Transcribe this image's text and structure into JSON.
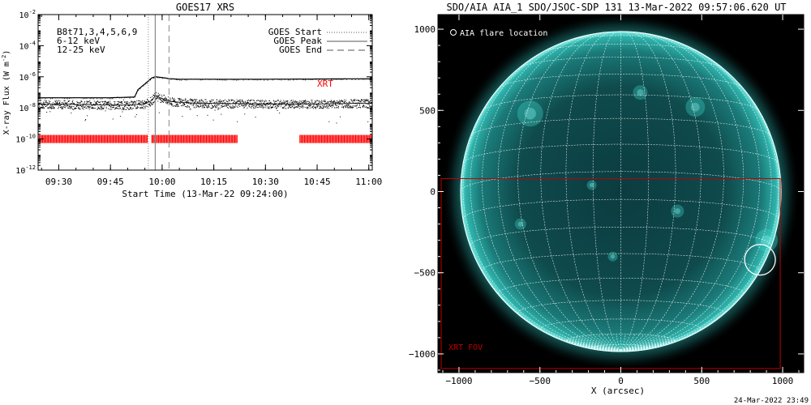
{
  "page": {
    "footer_timestamp": "24-Mar-2022 23:49"
  },
  "colors": {
    "magenta": "#e000e0",
    "green": "#00e000",
    "red": "#ff0000",
    "xrt_red": "#c00000",
    "aia_teal": "#20c8c0",
    "grid_white": "#ffffff"
  },
  "chart_data": [
    {
      "type": "line",
      "title": "GOES17 XRS",
      "xlabel": "Start Time (13-Mar-22 09:24:00)",
      "ylabel": "X-ray Flux (W m^-2)",
      "ylabel_parts": [
        "X-ray Flux (W m",
        "-2",
        ")"
      ],
      "yscale": "log",
      "xlim": [
        "09:24",
        "11:01"
      ],
      "ylim": [
        1e-12,
        0.01
      ],
      "x_ticks": [
        "09:30",
        "09:45",
        "10:00",
        "10:15",
        "10:30",
        "10:45",
        "11:00"
      ],
      "y_ticks": [
        {
          "base": "10",
          "exp": "-2"
        },
        {
          "base": "10",
          "exp": "-4"
        },
        {
          "base": "10",
          "exp": "-6"
        },
        {
          "base": "10",
          "exp": "-8"
        },
        {
          "base": "10",
          "exp": "-10"
        },
        {
          "base": "10",
          "exp": "-12"
        }
      ],
      "channel_labels": [
        {
          "text": "B8t71,3,4,5,6,9",
          "color": "#000000"
        },
        {
          "text": "6-12 keV",
          "color": "#e000e0"
        },
        {
          "text": "12-25 keV",
          "color": "#00e000"
        }
      ],
      "legend": {
        "placement": "top-right",
        "entries": [
          {
            "label": "GOES Start",
            "style": "dotted"
          },
          {
            "label": "GOES Peak",
            "style": "solid"
          },
          {
            "label": "GOES End",
            "style": "dashed"
          }
        ]
      },
      "event_lines": {
        "start": "09:56",
        "peak": "09:58",
        "end": "10:02"
      },
      "series": [
        {
          "name": "",
          "channel": "long",
          "x": [
            "09:24",
            "09:45",
            "09:52",
            "09:53",
            "09:55",
            "09:56",
            "09:57",
            "09:58",
            "10:00",
            "10:02",
            "10:05",
            "10:15",
            "10:30",
            "10:45",
            "11:00",
            "11:01"
          ],
          "y": [
            4.5e-08,
            4.5e-08,
            5e-08,
            1.5e-07,
            3.5e-07,
            5.5e-07,
            8.5e-07,
            1e-06,
            9e-07,
            7.5e-07,
            7e-07,
            7e-07,
            7e-07,
            7.2e-07,
            7.5e-07,
            7.5e-07
          ]
        },
        {
          "name": "",
          "channel": "short",
          "x": [
            "09:24",
            "09:40",
            "09:50",
            "09:55",
            "09:57",
            "09:58",
            "10:00",
            "10:03",
            "10:10",
            "10:30",
            "10:45",
            "11:00",
            "11:01"
          ],
          "y": [
            1.8e-08,
            1.6e-08,
            1.5e-08,
            1.8e-08,
            3e-08,
            6e-08,
            4e-08,
            2.5e-08,
            2e-08,
            1.8e-08,
            1.8e-08,
            2e-08,
            1.9e-08
          ]
        }
      ],
      "xrt_coverage": {
        "label": "XRT",
        "level": 1e-10,
        "intervals": [
          [
            "09:24",
            "09:56"
          ],
          [
            "09:57",
            "10:22"
          ],
          [
            "10:40",
            "11:01"
          ]
        ]
      }
    },
    {
      "type": "image",
      "title": "SDO/AIA AIA_1 SDO/JSOC-SDP 131 13-Mar-2022 09:57:06.620 UT",
      "xlabel": "X (arcsec)",
      "ylabel": "",
      "xlim": [
        -1130,
        1130
      ],
      "ylim": [
        -1115,
        1090
      ],
      "x_ticks": [
        -1000,
        -500,
        0,
        500,
        1000
      ],
      "y_ticks": [
        -1000,
        -500,
        0,
        500,
        1000
      ],
      "solar_radius": 990,
      "legend_text": "AIA flare location",
      "flare_location": {
        "x": 860,
        "y": -420,
        "radius": 95
      },
      "xrt_fov": {
        "label": "XRT FOV",
        "x": [
          -1110,
          985
        ],
        "y": [
          -1090,
          80
        ]
      },
      "grid_spacing_deg": 10
    }
  ]
}
